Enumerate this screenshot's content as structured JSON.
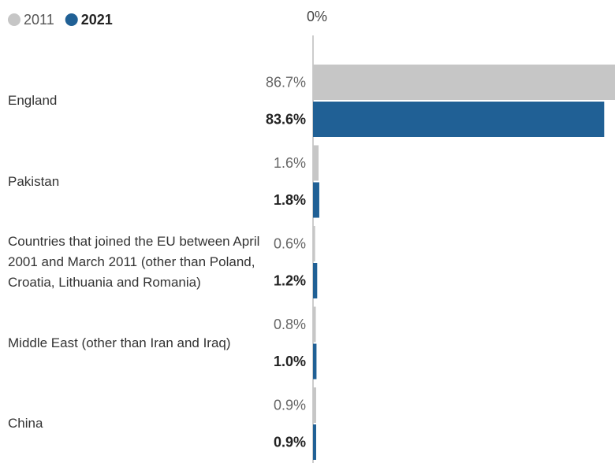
{
  "chart_data": {
    "type": "bar",
    "orientation": "horizontal",
    "categories": [
      "England",
      "Pakistan",
      "Countries that joined the EU between April 2001 and March 2011 (other than Poland, Croatia, Lithuania and Romania)",
      "Middle East (other than Iran and Iraq)",
      "China"
    ],
    "series": [
      {
        "name": "2011",
        "color": "#c6c6c6",
        "values": [
          86.7,
          1.6,
          0.6,
          0.8,
          0.9
        ],
        "value_labels": [
          "86.7%",
          "1.6%",
          "0.6%",
          "0.8%",
          "0.9%"
        ]
      },
      {
        "name": "2021",
        "color": "#206095",
        "values": [
          83.6,
          1.8,
          1.2,
          1.0,
          0.9
        ],
        "value_labels": [
          "83.6%",
          "1.8%",
          "1.2%",
          "1.0%",
          "0.9%"
        ]
      }
    ],
    "xlim": [
      0,
      86.7
    ],
    "xticks": [
      {
        "value": 0,
        "label": "0%"
      }
    ],
    "legend": "top-left"
  }
}
